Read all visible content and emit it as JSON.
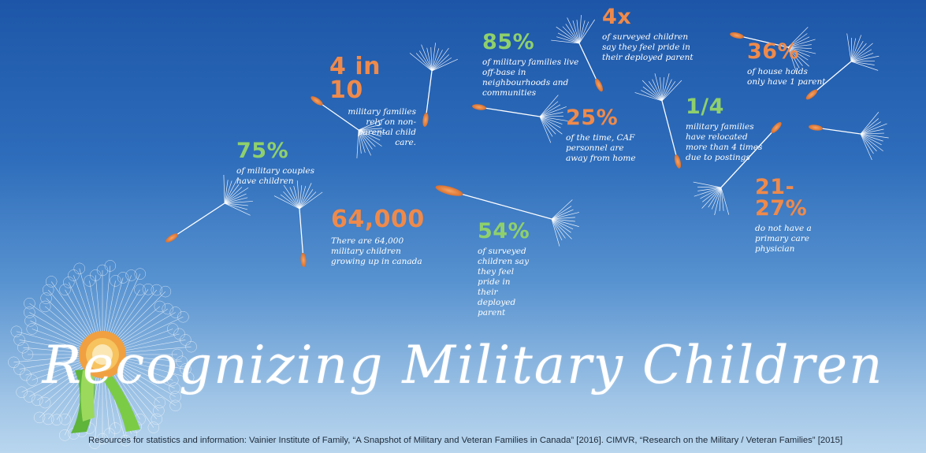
{
  "title": "Recognizing Military Children",
  "sources": "Resources for statistics and information: Vainier Institute of Family, “A Snapshot of Military and Veteran Families in Canada” [2016]. CIMVR, “Research on the Military / Veteran Families” [2015]",
  "colors": {
    "orange": "#ef8a4b",
    "green": "#8fd06c",
    "background_top": "#1d56a8",
    "background_bottom": "#b9d6ee"
  },
  "stats": {
    "s75": {
      "value": "75%",
      "text": "of military couples have children"
    },
    "s4in10": {
      "value": "4 in 10",
      "text": "military families rely on non-parental child care."
    },
    "s85": {
      "value": "85%",
      "text": "of military families live off-base in neighbourhoods and communities"
    },
    "s4x": {
      "value": "4x",
      "text": "of surveyed children say they feel pride in their deployed parent"
    },
    "s36": {
      "value": "36%",
      "text": "of house holds only have 1 parent"
    },
    "s25": {
      "value": "25%",
      "text": "of the time, CAF personnel are away from home"
    },
    "s1of4": {
      "value": "1/4",
      "text": "military families have relocated more than 4 times due to postings"
    },
    "s64000": {
      "value": "64,000",
      "text": "There are 64,000 military children growing up in canada"
    },
    "s54": {
      "value": "54%",
      "text": "of surveyed children say they feel pride in their deployed parent"
    },
    "s21": {
      "value": "21-27%",
      "text": "do not have a primary care physician"
    }
  }
}
